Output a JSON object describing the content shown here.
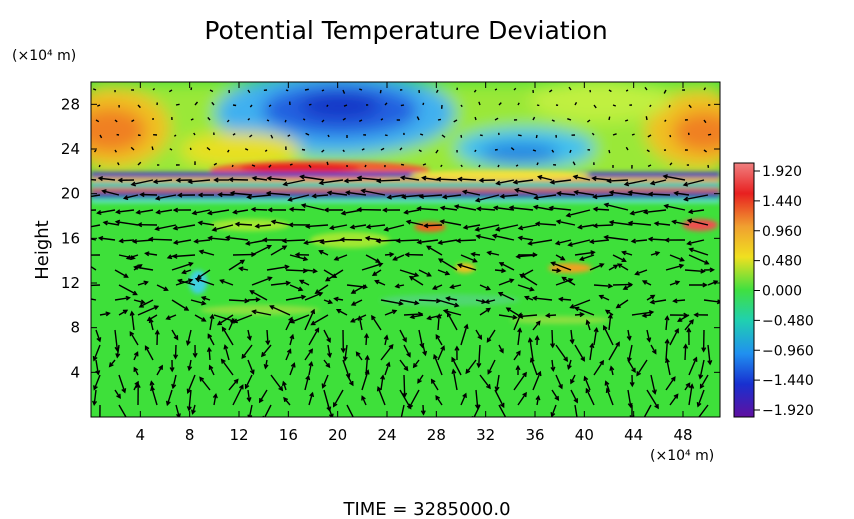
{
  "chart_data": {
    "type": "heatmap",
    "title": "Potential Temperature Deviation",
    "ylabel": "Height",
    "xunit_label": "(×10⁴ m)",
    "yunit_label": "(×10⁴ m)",
    "footer": "TIME = 3285000.0",
    "xlim": [
      0,
      51
    ],
    "ylim": [
      0,
      30
    ],
    "xticks": [
      4,
      8,
      12,
      16,
      20,
      24,
      28,
      32,
      36,
      40,
      44,
      48
    ],
    "yticks": [
      4,
      8,
      12,
      16,
      20,
      24,
      28
    ],
    "colorbar": {
      "ticks": [
        "1.920",
        "1.440",
        "0.960",
        "0.480",
        "0.000",
        "−0.480",
        "−0.960",
        "−1.440",
        "−1.920"
      ],
      "values": [
        1.92,
        1.44,
        0.96,
        0.48,
        0.0,
        -0.48,
        -0.96,
        -1.44,
        -1.92
      ],
      "colors": [
        "#f07070",
        "#e81818",
        "#f0a030",
        "#f0e020",
        "#40e040",
        "#20d0b0",
        "#2090f0",
        "#1830d0",
        "#6010a0"
      ]
    },
    "features": [
      {
        "x": 20,
        "y": 27.5,
        "value": -1.7
      },
      {
        "x": 2,
        "y": 25.5,
        "value": 1.3
      },
      {
        "x": 50,
        "y": 25.5,
        "value": 1.3
      },
      {
        "x": 34,
        "y": 22.5,
        "value": -0.8
      },
      {
        "x": 20,
        "y": 21.5,
        "value": 1.4
      }
    ]
  }
}
